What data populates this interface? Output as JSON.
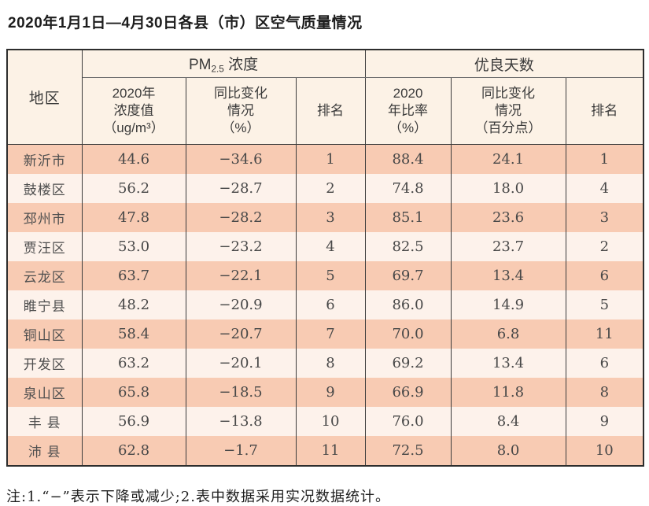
{
  "title": "2020年1月1日—4月30日各县（市）区空气质量情况",
  "table": {
    "region_header": "地区",
    "group_pm_prefix": "PM",
    "group_pm_sub": "2.5",
    "group_pm_suffix": " 浓度",
    "group_good": "优良天数",
    "col_pm_value": "2020年\n浓度值\n（ug/m³）",
    "col_pm_change": "同比变化\n情况\n（%）",
    "col_pm_rank": "排名",
    "col_good_ratio": "2020\n年比率\n（%）",
    "col_good_change": "同比变化\n情况\n（百分点）",
    "col_good_rank": "排名",
    "rows": [
      {
        "region": "新沂市",
        "pm_value": "44.6",
        "pm_change": "−34.6",
        "pm_rank": "1",
        "good_ratio": "88.4",
        "good_change": "24.1",
        "good_rank": "1"
      },
      {
        "region": "鼓楼区",
        "pm_value": "56.2",
        "pm_change": "−28.7",
        "pm_rank": "2",
        "good_ratio": "74.8",
        "good_change": "18.0",
        "good_rank": "4"
      },
      {
        "region": "邳州市",
        "pm_value": "47.8",
        "pm_change": "−28.2",
        "pm_rank": "3",
        "good_ratio": "85.1",
        "good_change": "23.6",
        "good_rank": "3"
      },
      {
        "region": "贾汪区",
        "pm_value": "53.0",
        "pm_change": "−23.2",
        "pm_rank": "4",
        "good_ratio": "82.5",
        "good_change": "23.7",
        "good_rank": "2"
      },
      {
        "region": "云龙区",
        "pm_value": "63.7",
        "pm_change": "−22.1",
        "pm_rank": "5",
        "good_ratio": "69.7",
        "good_change": "13.4",
        "good_rank": "6"
      },
      {
        "region": "睢宁县",
        "pm_value": "48.2",
        "pm_change": "−20.9",
        "pm_rank": "6",
        "good_ratio": "86.0",
        "good_change": "14.9",
        "good_rank": "5"
      },
      {
        "region": "铜山区",
        "pm_value": "58.4",
        "pm_change": "−20.7",
        "pm_rank": "7",
        "good_ratio": "70.0",
        "good_change": "6.8",
        "good_rank": "11"
      },
      {
        "region": "开发区",
        "pm_value": "63.2",
        "pm_change": "−20.1",
        "pm_rank": "8",
        "good_ratio": "69.2",
        "good_change": "13.4",
        "good_rank": "6"
      },
      {
        "region": "泉山区",
        "pm_value": "65.8",
        "pm_change": "−18.5",
        "pm_rank": "9",
        "good_ratio": "66.9",
        "good_change": "11.8",
        "good_rank": "8"
      },
      {
        "region": "丰 县",
        "pm_value": "56.9",
        "pm_change": "−13.8",
        "pm_rank": "10",
        "good_ratio": "76.0",
        "good_change": "8.4",
        "good_rank": "9"
      },
      {
        "region": "沛 县",
        "pm_value": "62.8",
        "pm_change": "−1.7",
        "pm_rank": "11",
        "good_ratio": "72.5",
        "good_change": "8.0",
        "good_rank": "10"
      }
    ]
  },
  "note": "注:1.“−”表示下降或减少;2.表中数据采用实况数据统计。",
  "colors": {
    "row_salmon": "#f8cbb3",
    "row_light": "#fdf2eb",
    "header_cream": "#fcf2e6",
    "border_dark": "#2d2d2d"
  }
}
